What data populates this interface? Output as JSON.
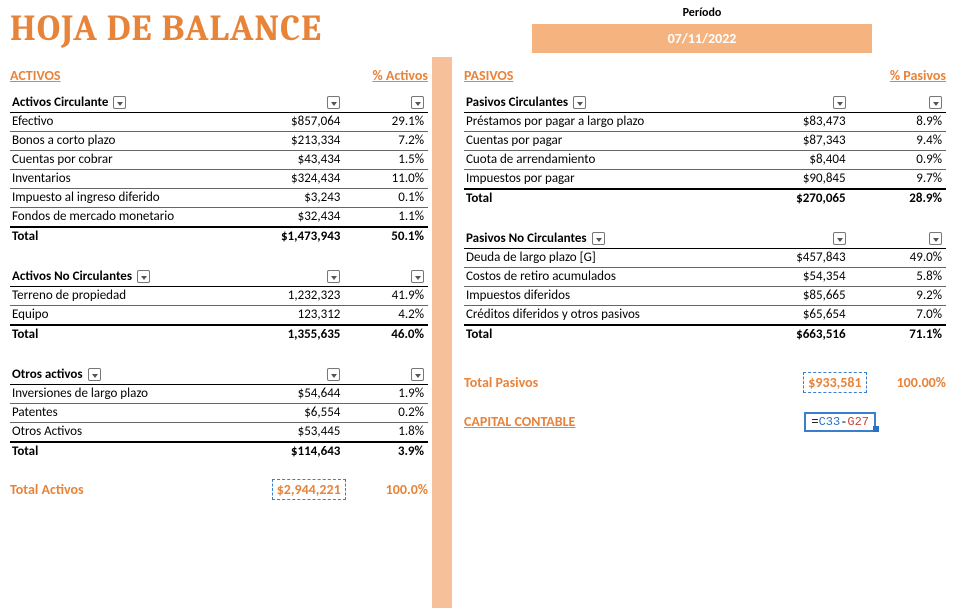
{
  "title": "HOJA DE BALANCE",
  "period": {
    "label": "Período",
    "date": "07/11/2022"
  },
  "colors": {
    "accent": "#e8833a",
    "divider": "#f5c09a",
    "periodBg": "#f5b37f"
  },
  "activos": {
    "heading": "ACTIVOS",
    "pctHeading": "% Activos",
    "groups": [
      {
        "name": "Activos Circulante",
        "rows": [
          {
            "label": "Efectivo",
            "value": "$857,064",
            "pct": "29.1%"
          },
          {
            "label": "Bonos a corto plazo",
            "value": "$213,334",
            "pct": "7.2%"
          },
          {
            "label": "Cuentas por cobrar",
            "value": "$43,434",
            "pct": "1.5%"
          },
          {
            "label": "Inventarios",
            "value": "$324,434",
            "pct": "11.0%"
          },
          {
            "label": "Impuesto al ingreso diferido",
            "value": "$3,243",
            "pct": "0.1%"
          },
          {
            "label": "Fondos de mercado monetario",
            "value": "$32,434",
            "pct": "1.1%"
          }
        ],
        "total": {
          "label": "Total",
          "value": "$1,473,943",
          "pct": "50.1%"
        }
      },
      {
        "name": "Activos No Circulantes",
        "rows": [
          {
            "label": "Terreno de propiedad",
            "value": "1,232,323",
            "pct": "41.9%"
          },
          {
            "label": "Equipo",
            "value": "123,312",
            "pct": "4.2%"
          }
        ],
        "total": {
          "label": "Total",
          "value": "1,355,635",
          "pct": "46.0%"
        }
      },
      {
        "name": "Otros activos",
        "rows": [
          {
            "label": "Inversiones de largo plazo",
            "value": "$54,644",
            "pct": "1.9%"
          },
          {
            "label": "Patentes",
            "value": "$6,554",
            "pct": "0.2%"
          },
          {
            "label": "Otros Activos",
            "value": "$53,445",
            "pct": "1.8%"
          }
        ],
        "total": {
          "label": "Total",
          "value": "$114,643",
          "pct": "3.9%"
        }
      }
    ],
    "grand": {
      "label": "Total Activos",
      "value": "$2,944,221",
      "pct": "100.0%"
    }
  },
  "pasivos": {
    "heading": "PASIVOS",
    "pctHeading": "% Pasivos",
    "groups": [
      {
        "name": "Pasivos Circulantes",
        "rows": [
          {
            "label": "Préstamos por pagar a largo plazo",
            "value": "$83,473",
            "pct": "8.9%"
          },
          {
            "label": "Cuentas por pagar",
            "value": "$87,343",
            "pct": "9.4%"
          },
          {
            "label": "Cuota de arrendamiento",
            "value": "$8,404",
            "pct": "0.9%"
          },
          {
            "label": "Impuestos por pagar",
            "value": "$90,845",
            "pct": "9.7%"
          }
        ],
        "total": {
          "label": "Total",
          "value": "$270,065",
          "pct": "28.9%"
        }
      },
      {
        "name": "Pasivos No Circulantes",
        "rows": [
          {
            "label": "Deuda de largo plazo [G]",
            "value": "$457,843",
            "pct": "49.0%"
          },
          {
            "label": "Costos de retiro acumulados",
            "value": "$54,354",
            "pct": "5.8%"
          },
          {
            "label": "Impuestos diferidos",
            "value": "$85,665",
            "pct": "9.2%"
          },
          {
            "label": "Créditos diferidos y otros pasivos",
            "value": "$65,654",
            "pct": "7.0%"
          }
        ],
        "total": {
          "label": "Total",
          "value": "$663,516",
          "pct": "71.1%"
        }
      }
    ],
    "grand": {
      "label": "Total Pasivos",
      "value": "$933,581",
      "pct": "100.00%"
    }
  },
  "capital": {
    "label": "CAPITAL CONTABLE",
    "formulaPrefix": "=",
    "ref1": "C33",
    "op": "-",
    "ref2": "G27"
  }
}
